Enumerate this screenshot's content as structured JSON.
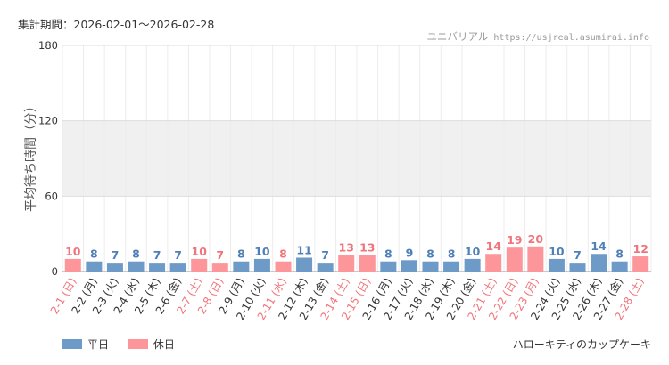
{
  "header": {
    "period": "集計期間：2026-02-01～2026-02-28",
    "park": "ユニバリアル",
    "site": "https://usjreal.asumirai.info"
  },
  "shop_name": "ハローキティのカップケーキ",
  "colors": {
    "weekday": "#6e9ac8",
    "holiday": "#fc969a",
    "weekday_text": "#4f7fb8",
    "holiday_text": "#f0757b",
    "band": "#f0f0f0",
    "grid": "#dddddd"
  },
  "chart_data": {
    "type": "bar",
    "title": "",
    "ylabel": "平均待ち時間（分）",
    "xlabel": "",
    "ylim": [
      0,
      180
    ],
    "yticks": [
      0,
      60,
      120,
      180
    ],
    "band": [
      60,
      120
    ],
    "legend": [
      "平日",
      "休日"
    ],
    "categories": [
      "2-1 (日)",
      "2-2 (月)",
      "2-3 (火)",
      "2-4 (水)",
      "2-5 (木)",
      "2-6 (金)",
      "2-7 (土)",
      "2-8 (日)",
      "2-9 (月)",
      "2-10 (火)",
      "2-11 (水)",
      "2-12 (木)",
      "2-13 (金)",
      "2-14 (土)",
      "2-15 (日)",
      "2-16 (月)",
      "2-17 (火)",
      "2-18 (水)",
      "2-19 (木)",
      "2-20 (金)",
      "2-21 (土)",
      "2-22 (日)",
      "2-23 (月)",
      "2-24 (火)",
      "2-25 (水)",
      "2-26 (木)",
      "2-27 (金)",
      "2-28 (土)"
    ],
    "values": [
      10,
      8,
      7,
      8,
      7,
      7,
      10,
      7,
      8,
      10,
      8,
      11,
      7,
      13,
      13,
      8,
      9,
      8,
      8,
      10,
      14,
      19,
      20,
      10,
      7,
      14,
      8,
      12
    ],
    "holiday": [
      true,
      false,
      false,
      false,
      false,
      false,
      true,
      true,
      false,
      false,
      true,
      false,
      false,
      true,
      true,
      false,
      false,
      false,
      false,
      false,
      true,
      true,
      true,
      false,
      false,
      false,
      false,
      true
    ]
  }
}
